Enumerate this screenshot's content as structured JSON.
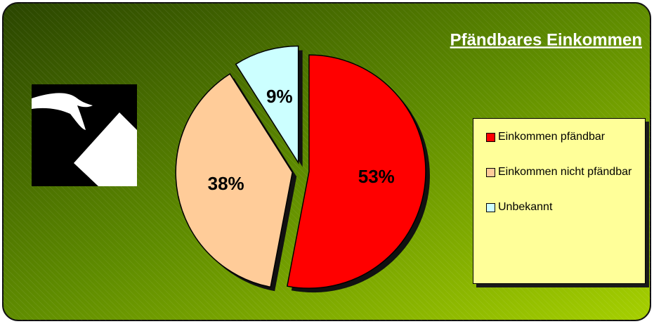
{
  "chart_data": {
    "type": "pie",
    "title": "Pfändbares Einkommen",
    "categories": [
      "Einkommen pfändbar",
      "Einkommen nicht pfändbar",
      "Unbekannt"
    ],
    "values": [
      53,
      38,
      9
    ],
    "value_labels": [
      "53%",
      "38%",
      "9%"
    ],
    "colors": [
      "#ff0000",
      "#ffcc99",
      "#ccffff"
    ],
    "legend": "right"
  }
}
